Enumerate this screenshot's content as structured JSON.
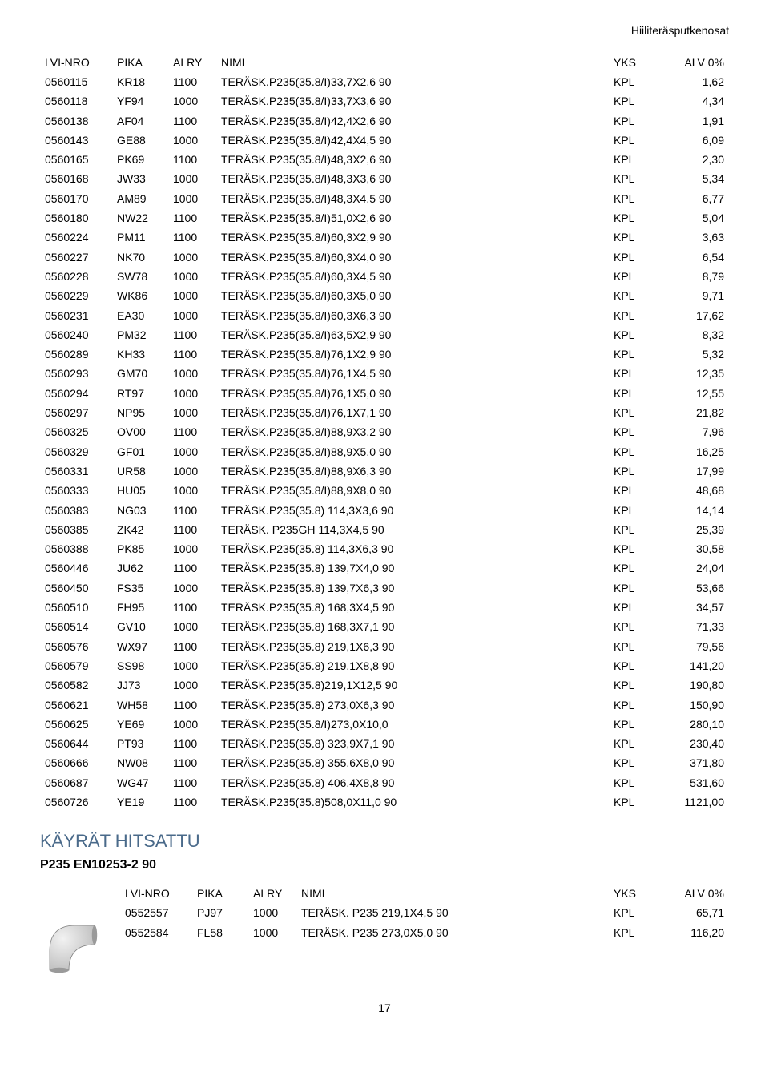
{
  "header": {
    "title": "Hiiliteräsputkenosat"
  },
  "table_main": {
    "columns": [
      "LVI-NRO",
      "PIKA",
      "ALRY",
      "NIMI",
      "YKS",
      "ALV 0%"
    ],
    "rows": [
      [
        "0560115",
        "KR18",
        "1100",
        "TERÄSK.P235(35.8/I)33,7X2,6 90",
        "KPL",
        "1,62"
      ],
      [
        "0560118",
        "YF94",
        "1000",
        "TERÄSK.P235(35.8/I)33,7X3,6 90",
        "KPL",
        "4,34"
      ],
      [
        "0560138",
        "AF04",
        "1100",
        "TERÄSK.P235(35.8/I)42,4X2,6 90",
        "KPL",
        "1,91"
      ],
      [
        "0560143",
        "GE88",
        "1000",
        "TERÄSK.P235(35.8/I)42,4X4,5 90",
        "KPL",
        "6,09"
      ],
      [
        "0560165",
        "PK69",
        "1100",
        "TERÄSK.P235(35.8/I)48,3X2,6 90",
        "KPL",
        "2,30"
      ],
      [
        "0560168",
        "JW33",
        "1000",
        "TERÄSK.P235(35.8/I)48,3X3,6 90",
        "KPL",
        "5,34"
      ],
      [
        "0560170",
        "AM89",
        "1000",
        "TERÄSK.P235(35.8/I)48,3X4,5 90",
        "KPL",
        "6,77"
      ],
      [
        "0560180",
        "NW22",
        "1100",
        "TERÄSK.P235(35.8/I)51,0X2,6 90",
        "KPL",
        "5,04"
      ],
      [
        "0560224",
        "PM11",
        "1100",
        "TERÄSK.P235(35.8/I)60,3X2,9 90",
        "KPL",
        "3,63"
      ],
      [
        "0560227",
        "NK70",
        "1000",
        "TERÄSK.P235(35.8/I)60,3X4,0 90",
        "KPL",
        "6,54"
      ],
      [
        "0560228",
        "SW78",
        "1000",
        "TERÄSK.P235(35.8/I)60,3X4,5 90",
        "KPL",
        "8,79"
      ],
      [
        "0560229",
        "WK86",
        "1000",
        "TERÄSK.P235(35.8/I)60,3X5,0 90",
        "KPL",
        "9,71"
      ],
      [
        "0560231",
        "EA30",
        "1000",
        "TERÄSK.P235(35.8/I)60,3X6,3 90",
        "KPL",
        "17,62"
      ],
      [
        "0560240",
        "PM32",
        "1100",
        "TERÄSK.P235(35.8/I)63,5X2,9 90",
        "KPL",
        "8,32"
      ],
      [
        "0560289",
        "KH33",
        "1100",
        "TERÄSK.P235(35.8/I)76,1X2,9 90",
        "KPL",
        "5,32"
      ],
      [
        "0560293",
        "GM70",
        "1000",
        "TERÄSK.P235(35.8/I)76,1X4,5 90",
        "KPL",
        "12,35"
      ],
      [
        "0560294",
        "RT97",
        "1000",
        "TERÄSK.P235(35.8/I)76,1X5,0 90",
        "KPL",
        "12,55"
      ],
      [
        "0560297",
        "NP95",
        "1000",
        "TERÄSK.P235(35.8/I)76,1X7,1 90",
        "KPL",
        "21,82"
      ],
      [
        "0560325",
        "OV00",
        "1100",
        "TERÄSK.P235(35.8/I)88,9X3,2 90",
        "KPL",
        "7,96"
      ],
      [
        "0560329",
        "GF01",
        "1000",
        "TERÄSK.P235(35.8/I)88,9X5,0 90",
        "KPL",
        "16,25"
      ],
      [
        "0560331",
        "UR58",
        "1000",
        "TERÄSK.P235(35.8/I)88,9X6,3 90",
        "KPL",
        "17,99"
      ],
      [
        "0560333",
        "HU05",
        "1000",
        "TERÄSK.P235(35.8/I)88,9X8,0 90",
        "KPL",
        "48,68"
      ],
      [
        "0560383",
        "NG03",
        "1100",
        "TERÄSK.P235(35.8) 114,3X3,6 90",
        "KPL",
        "14,14"
      ],
      [
        "0560385",
        "ZK42",
        "1100",
        "TERÄSK. P235GH 114,3X4,5 90",
        "KPL",
        "25,39"
      ],
      [
        "0560388",
        "PK85",
        "1000",
        "TERÄSK.P235(35.8) 114,3X6,3 90",
        "KPL",
        "30,58"
      ],
      [
        "0560446",
        "JU62",
        "1100",
        "TERÄSK.P235(35.8) 139,7X4,0 90",
        "KPL",
        "24,04"
      ],
      [
        "0560450",
        "FS35",
        "1000",
        "TERÄSK.P235(35.8) 139,7X6,3 90",
        "KPL",
        "53,66"
      ],
      [
        "0560510",
        "FH95",
        "1100",
        "TERÄSK.P235(35.8) 168,3X4,5 90",
        "KPL",
        "34,57"
      ],
      [
        "0560514",
        "GV10",
        "1000",
        "TERÄSK.P235(35.8) 168,3X7,1 90",
        "KPL",
        "71,33"
      ],
      [
        "0560576",
        "WX97",
        "1100",
        "TERÄSK.P235(35.8) 219,1X6,3 90",
        "KPL",
        "79,56"
      ],
      [
        "0560579",
        "SS98",
        "1000",
        "TERÄSK.P235(35.8) 219,1X8,8 90",
        "KPL",
        "141,20"
      ],
      [
        "0560582",
        "JJ73",
        "1000",
        "TERÄSK.P235(35.8)219,1X12,5 90",
        "KPL",
        "190,80"
      ],
      [
        "0560621",
        "WH58",
        "1100",
        "TERÄSK.P235(35.8) 273,0X6,3 90",
        "KPL",
        "150,90"
      ],
      [
        "0560625",
        "YE69",
        "1000",
        "TERÄSK.P235(35.8/I)273,0X10,0",
        "KPL",
        "280,10"
      ],
      [
        "0560644",
        "PT93",
        "1100",
        "TERÄSK.P235(35.8) 323,9X7,1 90",
        "KPL",
        "230,40"
      ],
      [
        "0560666",
        "NW08",
        "1100",
        "TERÄSK.P235(35.8) 355,6X8,0 90",
        "KPL",
        "371,80"
      ],
      [
        "0560687",
        "WG47",
        "1100",
        "TERÄSK.P235(35.8) 406,4X8,8 90",
        "KPL",
        "531,60"
      ],
      [
        "0560726",
        "YE19",
        "1100",
        "TERÄSK.P235(35.8)508,0X11,0 90",
        "KPL",
        "1121,00"
      ]
    ]
  },
  "section": {
    "title": "KÄYRÄT HITSATTU",
    "subtitle": "P235 EN10253-2 90"
  },
  "table_sub": {
    "columns": [
      "LVI-NRO",
      "PIKA",
      "ALRY",
      "NIMI",
      "YKS",
      "ALV 0%"
    ],
    "rows": [
      [
        "0552557",
        "PJ97",
        "1000",
        "TERÄSK. P235 219,1X4,5 90",
        "KPL",
        "65,71"
      ],
      [
        "0552584",
        "FL58",
        "1000",
        "TERÄSK. P235 273,0X5,0 90",
        "KPL",
        "116,20"
      ]
    ]
  },
  "page_number": "17",
  "colors": {
    "section_title": "#4a6a8a",
    "text": "#000000",
    "background": "#ffffff",
    "elbow_fill": "#d8d8d8",
    "elbow_stroke": "#808080"
  }
}
